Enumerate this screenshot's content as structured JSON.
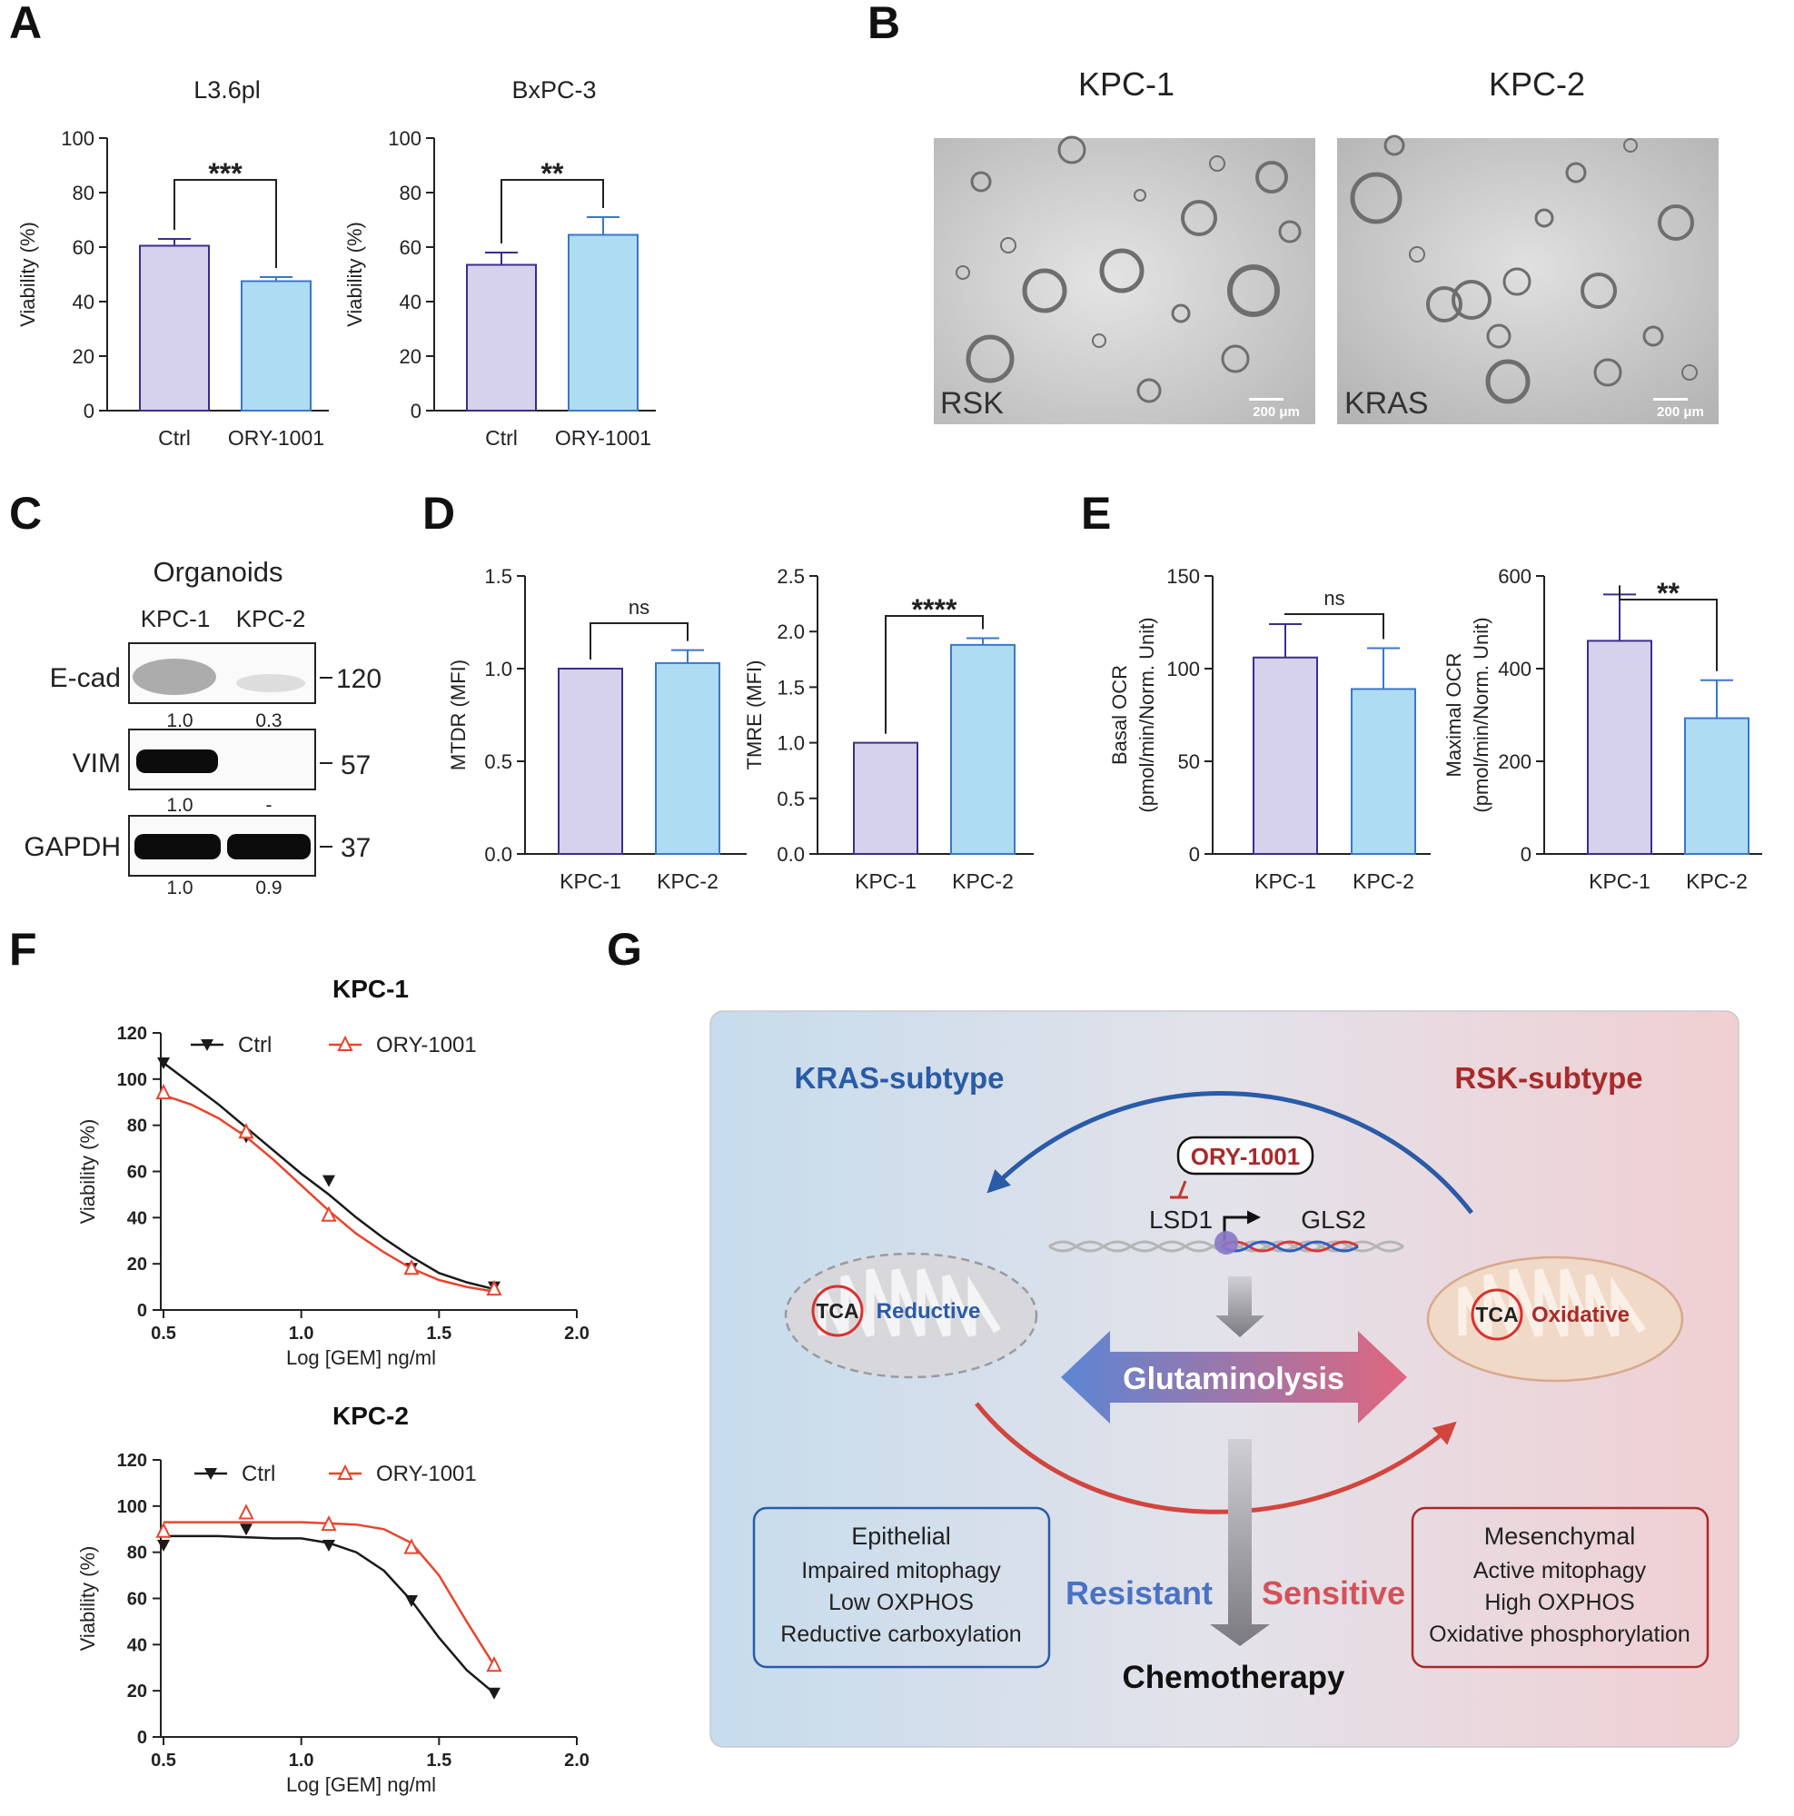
{
  "panel_letters": [
    "A",
    "B",
    "C",
    "D",
    "E",
    "F",
    "G"
  ],
  "colors": {
    "ctrl_fill": "#d6d2ec",
    "ctrl_stroke": "#3b2e8a",
    "treat_fill": "#aedcf3",
    "treat_stroke": "#3b77c9",
    "line_ctrl": "#1a1a1a",
    "line_ory": "#e8452c",
    "kras_blue": "#2a5ba6",
    "rsk_red": "#a82a2a"
  },
  "chart_data": [
    {
      "type": "bar",
      "panel": "A",
      "title": "L3.6pl",
      "categories": [
        "Ctrl",
        "ORY-1001"
      ],
      "values": [
        60.5,
        47.5
      ],
      "errors": [
        2.5,
        1.5
      ],
      "xlabel": "",
      "ylabel": "Viability (%)",
      "ylim": [
        0,
        100
      ],
      "yticks": [
        "0",
        "20",
        "40",
        "60",
        "80",
        "100"
      ],
      "significance": "***"
    },
    {
      "type": "bar",
      "panel": "A",
      "title": "BxPC-3",
      "categories": [
        "Ctrl",
        "ORY-1001"
      ],
      "values": [
        53.5,
        64.5
      ],
      "errors": [
        4.5,
        6.5
      ],
      "xlabel": "",
      "ylabel": "Viability (%)",
      "ylim": [
        0,
        100
      ],
      "yticks": [
        "0",
        "20",
        "40",
        "60",
        "80",
        "100"
      ],
      "significance": "**"
    },
    {
      "type": "bar",
      "panel": "D",
      "title": "",
      "categories": [
        "KPC-1",
        "KPC-2"
      ],
      "values": [
        1.0,
        1.03
      ],
      "errors": [
        0,
        0.07
      ],
      "xlabel": "",
      "ylabel": "MTDR (MFI)",
      "ylim": [
        0,
        1.5
      ],
      "yticks": [
        "0.0",
        "0.5",
        "1.0",
        "1.5"
      ],
      "significance": "ns"
    },
    {
      "type": "bar",
      "panel": "D",
      "title": "",
      "categories": [
        "KPC-1",
        "KPC-2"
      ],
      "values": [
        1.0,
        1.88
      ],
      "errors": [
        0,
        0.06
      ],
      "xlabel": "",
      "ylabel": "TMRE (MFI)",
      "ylim": [
        0,
        2.5
      ],
      "yticks": [
        "0.0",
        "0.5",
        "1.0",
        "1.5",
        "2.0",
        "2.5"
      ],
      "significance": "****"
    },
    {
      "type": "bar",
      "panel": "E",
      "title": "",
      "categories": [
        "KPC-1",
        "KPC-2"
      ],
      "values": [
        106,
        89
      ],
      "errors": [
        18,
        22
      ],
      "xlabel": "",
      "ylabel": "Basal OCR",
      "ylabel2": "(pmol/min/Norm. Unit)",
      "ylim": [
        0,
        150
      ],
      "yticks": [
        "0",
        "50",
        "100",
        "150"
      ],
      "significance": "ns"
    },
    {
      "type": "bar",
      "panel": "E",
      "title": "",
      "categories": [
        "KPC-1",
        "KPC-2"
      ],
      "values": [
        460,
        293
      ],
      "errors": [
        100,
        82
      ],
      "xlabel": "",
      "ylabel": "Maximal OCR",
      "ylabel2": "(pmol/min/Norm. Unit)",
      "ylim": [
        0,
        600
      ],
      "yticks": [
        "0",
        "200",
        "400",
        "600"
      ],
      "significance": "**"
    },
    {
      "type": "line",
      "panel": "F",
      "title": "KPC-1",
      "xlabel": "Log [GEM] ng/ml",
      "ylabel": "Viability (%)",
      "xlim": [
        0.5,
        2.0
      ],
      "ylim": [
        0,
        120
      ],
      "xticks": [
        "0.5",
        "1.0",
        "1.5",
        "2.0"
      ],
      "yticks": [
        "0",
        "20",
        "40",
        "60",
        "80",
        "100",
        "120"
      ],
      "series": [
        {
          "name": "Ctrl",
          "x": [
            0.5,
            0.8,
            1.1,
            1.4,
            1.7
          ],
          "y": [
            107,
            75,
            56,
            18,
            10
          ],
          "fit": [
            [
              0.5,
              107
            ],
            [
              0.6,
              98
            ],
            [
              0.7,
              89
            ],
            [
              0.8,
              79
            ],
            [
              0.9,
              69
            ],
            [
              1.0,
              59
            ],
            [
              1.1,
              50
            ],
            [
              1.2,
              40
            ],
            [
              1.3,
              31
            ],
            [
              1.4,
              23
            ],
            [
              1.5,
              16
            ],
            [
              1.6,
              12
            ],
            [
              1.7,
              9
            ]
          ]
        },
        {
          "name": "ORY-1001",
          "x": [
            0.5,
            0.8,
            1.1,
            1.4,
            1.7
          ],
          "y": [
            94,
            77,
            41,
            18,
            9
          ],
          "fit": [
            [
              0.5,
              93
            ],
            [
              0.6,
              89
            ],
            [
              0.7,
              83
            ],
            [
              0.8,
              75
            ],
            [
              0.9,
              65
            ],
            [
              1.0,
              54
            ],
            [
              1.1,
              43
            ],
            [
              1.2,
              33
            ],
            [
              1.3,
              25
            ],
            [
              1.4,
              18
            ],
            [
              1.5,
              13
            ],
            [
              1.6,
              10
            ],
            [
              1.7,
              8
            ]
          ]
        }
      ]
    },
    {
      "type": "line",
      "panel": "F",
      "title": "KPC-2",
      "xlabel": "Log [GEM] ng/ml",
      "ylabel": "Viability (%)",
      "xlim": [
        0.5,
        2.0
      ],
      "ylim": [
        0,
        120
      ],
      "xticks": [
        "0.5",
        "1.0",
        "1.5",
        "2.0"
      ],
      "yticks": [
        "0",
        "20",
        "40",
        "60",
        "80",
        "100",
        "120"
      ],
      "series": [
        {
          "name": "Ctrl",
          "x": [
            0.5,
            0.8,
            1.1,
            1.4,
            1.7
          ],
          "y": [
            83,
            90,
            83,
            59,
            19
          ],
          "fit": [
            [
              0.5,
              87
            ],
            [
              0.7,
              87
            ],
            [
              0.9,
              86
            ],
            [
              1.0,
              86
            ],
            [
              1.1,
              84
            ],
            [
              1.2,
              80
            ],
            [
              1.3,
              72
            ],
            [
              1.4,
              59
            ],
            [
              1.5,
              43
            ],
            [
              1.6,
              29
            ],
            [
              1.7,
              19
            ]
          ]
        },
        {
          "name": "ORY-1001",
          "x": [
            0.5,
            0.8,
            1.1,
            1.4,
            1.7
          ],
          "y": [
            89,
            97,
            92,
            82,
            31
          ],
          "fit": [
            [
              0.5,
              93
            ],
            [
              0.8,
              93
            ],
            [
              1.0,
              93
            ],
            [
              1.2,
              92
            ],
            [
              1.3,
              90
            ],
            [
              1.4,
              84
            ],
            [
              1.5,
              70
            ],
            [
              1.6,
              50
            ],
            [
              1.7,
              31
            ]
          ]
        }
      ]
    }
  ],
  "panel_b": {
    "headers": [
      "KPC-1",
      "KPC-2"
    ],
    "image_labels": [
      "RSK",
      "KRAS"
    ],
    "scale_bar": "200 μm"
  },
  "panel_c": {
    "title": "Organoids",
    "lanes": [
      "KPC-1",
      "KPC-2"
    ],
    "blots": [
      {
        "protein": "E-cad",
        "mw": "120",
        "quant": [
          "1.0",
          "0.3"
        ]
      },
      {
        "protein": "VIM",
        "mw": "57",
        "quant": [
          "1.0",
          "-"
        ]
      },
      {
        "protein": "GAPDH",
        "mw": "37",
        "quant": [
          "1.0",
          "0.9"
        ]
      }
    ]
  },
  "panel_g": {
    "kras_title": "KRAS-subtype",
    "rsk_title": "RSK-subtype",
    "drug": "ORY-1001",
    "lsd1": "LSD1",
    "gls2": "GLS2",
    "tca": "TCA",
    "reductive": "Reductive",
    "oxidative": "Oxidative",
    "glutaminolysis": "Glutaminolysis",
    "resistant": "Resistant",
    "sensitive": "Sensitive",
    "chemotherapy": "Chemotherapy",
    "left_box": [
      "Epithelial",
      "Impaired mitophagy",
      "Low OXPHOS",
      "Reductive carboxylation"
    ],
    "right_box": [
      "Mesenchymal",
      "Active mitophagy",
      "High OXPHOS",
      "Oxidative phosphorylation"
    ]
  }
}
